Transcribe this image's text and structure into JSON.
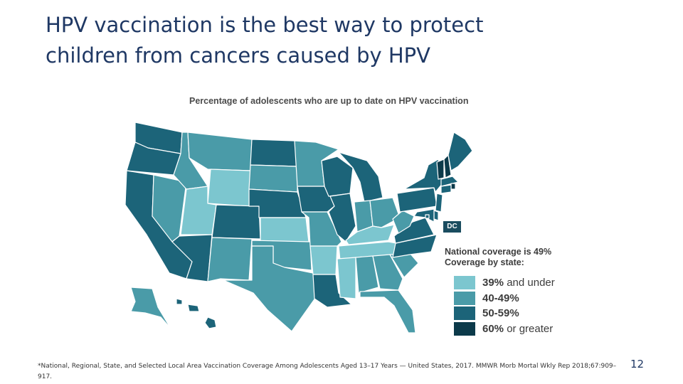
{
  "slide": {
    "title_line1": "HPV vaccination is the best way to protect",
    "title_line2": "children from cancers caused by HPV",
    "footnote": "*National, Regional, State, and Selected Local Area Vaccination Coverage Among Adolescents Aged 13–17 Years — United States, 2017. MMWR Morb Mortal Wkly Rep 2018;67:909–917.",
    "page_number": "12"
  },
  "map": {
    "title": "Percentage of adolescents who are up to date on HPV vaccination",
    "dc_label": "DC",
    "national_coverage": "National coverage is 49%",
    "coverage_by_state": "Coverage by state:",
    "legend": [
      {
        "key": "low",
        "pct": "39%",
        "suffix": " and under",
        "color": "#7cc6cf"
      },
      {
        "key": "mid",
        "pct": "40-49%",
        "suffix": "",
        "color": "#4a9ba8"
      },
      {
        "key": "high",
        "pct": "50-59%",
        "suffix": "",
        "color": "#1c6479"
      },
      {
        "key": "top",
        "pct": "60%",
        "suffix": " or greater",
        "color": "#0c3a4a"
      }
    ],
    "states": {
      "WA": "high",
      "OR": "high",
      "CA": "high",
      "NV": "mid",
      "ID": "mid",
      "MT": "mid",
      "WY": "low",
      "UT": "low",
      "AZ": "high",
      "CO": "high",
      "NM": "mid",
      "ND": "high",
      "SD": "mid",
      "NE": "high",
      "KS": "low",
      "OK": "mid",
      "TX": "mid",
      "MN": "mid",
      "IA": "high",
      "MO": "mid",
      "AR": "low",
      "LA": "high",
      "WI": "high",
      "IL": "high",
      "MI": "high",
      "IN": "mid",
      "OH": "mid",
      "KY": "low",
      "TN": "low",
      "MS": "low",
      "AL": "mid",
      "GA": "mid",
      "FL": "mid",
      "SC": "mid",
      "NC": "high",
      "VA": "high",
      "WV": "mid",
      "PA": "high",
      "NY": "high",
      "VT": "top",
      "NH": "top",
      "ME": "high",
      "MA": "high",
      "RI": "top",
      "CT": "high",
      "NJ": "high",
      "DE": "high",
      "MD": "high",
      "DC": "high",
      "AK": "mid",
      "HI": "high"
    }
  }
}
